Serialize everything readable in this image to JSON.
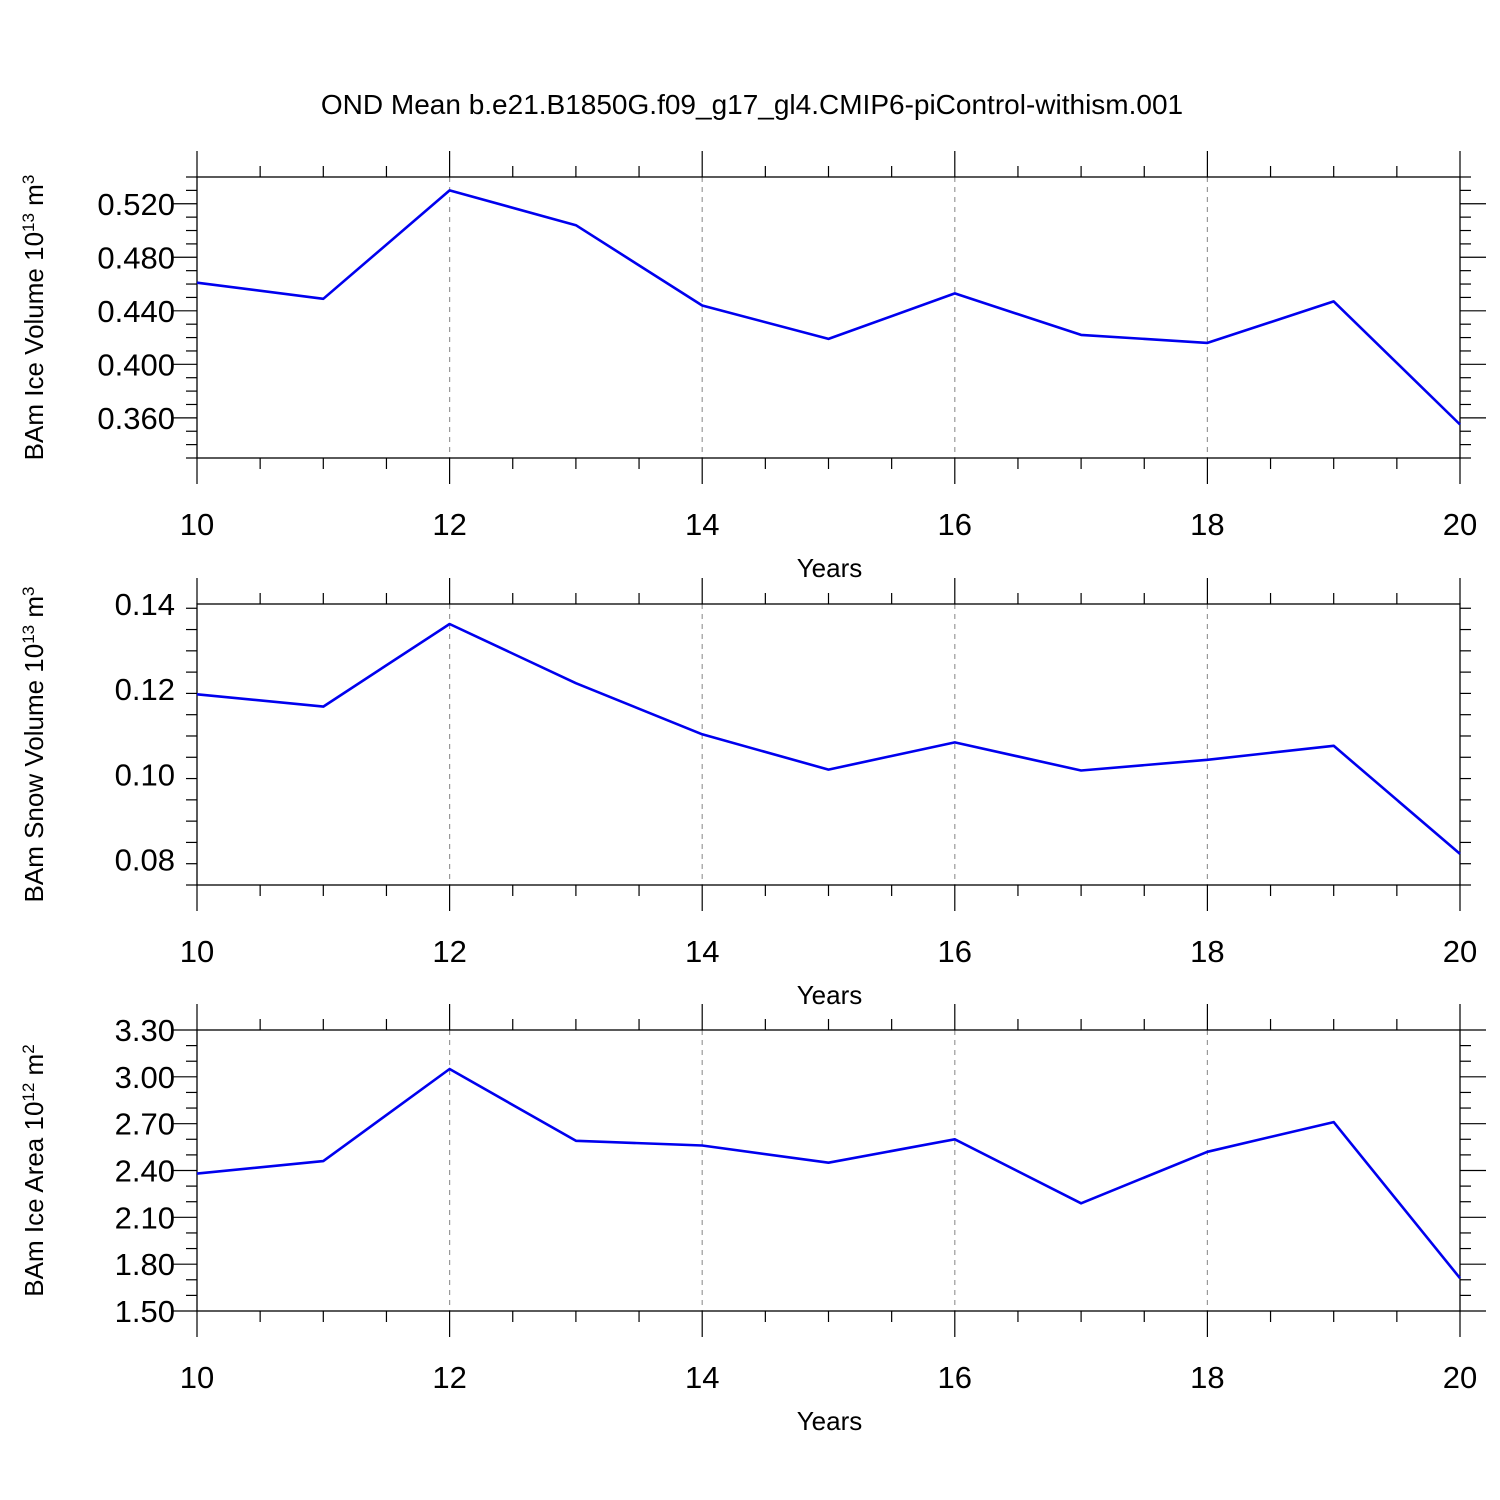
{
  "title": "OND Mean b.e21.B1850G.f09_g17_gl4.CMIP6-piControl-withism.001",
  "line_color": "#0000ee",
  "grid_color": "#999999",
  "chart_data": [
    {
      "type": "line",
      "ylabel": "BAm Ice Volume 10",
      "ylabel_exp": "13",
      "ylabel_unit": " m",
      "ylabel_unit_exp": "3",
      "xlabel": "Years",
      "xlim": [
        10,
        20
      ],
      "ylim": [
        0.33,
        0.54
      ],
      "xticks": [
        10,
        12,
        14,
        16,
        18,
        20
      ],
      "yticks": [
        0.36,
        0.4,
        0.44,
        0.48,
        0.52
      ],
      "ytick_labels": [
        "0.360",
        "0.400",
        "0.440",
        "0.480",
        "0.520"
      ],
      "yminor": 0.01,
      "x": [
        10,
        11,
        12,
        13,
        14,
        15,
        16,
        17,
        18,
        19,
        20
      ],
      "values": [
        0.461,
        0.449,
        0.53,
        0.504,
        0.444,
        0.419,
        0.453,
        0.422,
        0.416,
        0.447,
        0.355
      ]
    },
    {
      "type": "line",
      "ylabel": "BAm Snow Volume 10",
      "ylabel_exp": "13",
      "ylabel_unit": " m",
      "ylabel_unit_exp": "3",
      "xlabel": "Years",
      "xlim": [
        10,
        20
      ],
      "ylim": [
        0.074,
        0.14
      ],
      "xticks": [
        10,
        12,
        14,
        16,
        18,
        20
      ],
      "yticks": [
        0.08,
        0.1,
        0.12,
        0.14
      ],
      "ytick_labels": [
        "0.08",
        "0.10",
        "0.12",
        "0.14"
      ],
      "yminor": 0.005,
      "x": [
        10,
        11,
        12,
        13,
        14,
        15,
        16,
        17,
        18,
        19,
        20
      ],
      "values": [
        0.1188,
        0.1159,
        0.1353,
        0.1214,
        0.1094,
        0.1011,
        0.1075,
        0.1009,
        0.1034,
        0.1067,
        0.0813
      ]
    },
    {
      "type": "line",
      "ylabel": "BAm Ice Area 10",
      "ylabel_exp": "12",
      "ylabel_unit": " m",
      "ylabel_unit_exp": "2",
      "xlabel": "Years",
      "xlim": [
        10,
        20
      ],
      "ylim": [
        1.5,
        3.3
      ],
      "xticks": [
        10,
        12,
        14,
        16,
        18,
        20
      ],
      "yticks": [
        1.5,
        1.8,
        2.1,
        2.4,
        2.7,
        3.0,
        3.3
      ],
      "ytick_labels": [
        "1.50",
        "1.80",
        "2.10",
        "2.40",
        "2.70",
        "3.00",
        "3.30"
      ],
      "yminor": 0.1,
      "x": [
        10,
        11,
        12,
        13,
        14,
        15,
        16,
        17,
        18,
        19,
        20
      ],
      "values": [
        2.38,
        2.46,
        3.05,
        2.59,
        2.56,
        2.45,
        2.6,
        2.19,
        2.52,
        2.71,
        1.71
      ]
    }
  ]
}
